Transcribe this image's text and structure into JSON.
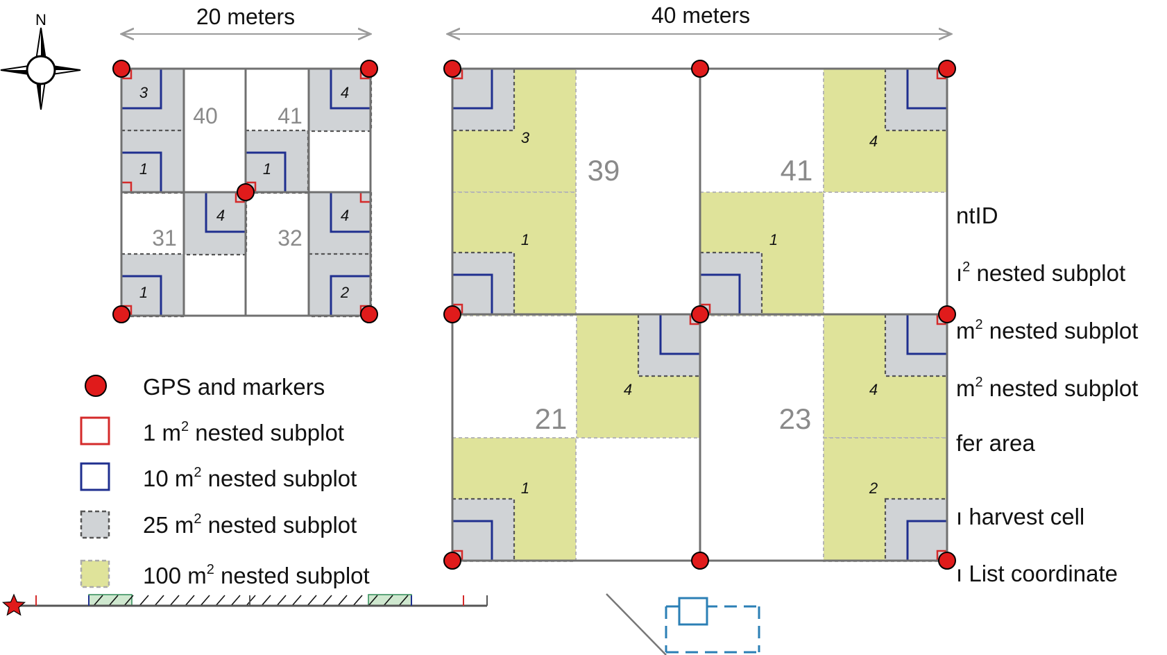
{
  "colors": {
    "gps_marker": "#e01b1b",
    "subplot_1m2": "#d42a2a",
    "subplot_10m2": "#1f2f8f",
    "subplot_25m2": "#d0d3d6",
    "subplot_100m2": "#dfe39a",
    "grid_line": "#707070",
    "cell_number": "#8a8a8a",
    "buffer_hatch": "#cfe8cf",
    "dashed_blue": "#2b7fb5"
  },
  "compass": {
    "north_label": "N"
  },
  "small_plot": {
    "width_label": "20 meters",
    "cells": [
      "40",
      "41",
      "31",
      "32"
    ],
    "subplot_labels": [
      "3",
      "4",
      "1",
      "1",
      "4",
      "4",
      "1",
      "2"
    ]
  },
  "large_plot": {
    "width_label": "40 meters",
    "cells": [
      "39",
      "41",
      "21",
      "23"
    ],
    "subplot_labels": [
      "3",
      "4",
      "1",
      "1",
      "4",
      "4",
      "1",
      "2"
    ]
  },
  "legend": [
    {
      "icon": "gps-marker-icon",
      "label": "GPS and markers",
      "sup": "",
      "label_rest": ""
    },
    {
      "icon": "red-square-icon",
      "label": "1 m",
      "sup": "2",
      "label_rest": " nested subplot"
    },
    {
      "icon": "blue-square-icon",
      "label": "10 m",
      "sup": "2",
      "label_rest": " nested subplot"
    },
    {
      "icon": "gray-dashed-square-icon",
      "label": "25 m",
      "sup": "2",
      "label_rest": " nested subplot"
    },
    {
      "icon": "yellow-dashed-square-icon",
      "label": "100 m",
      "sup": "2",
      "label_rest": " nested subplot"
    }
  ],
  "clipped_legend": [
    {
      "label": "ntID",
      "sup": "",
      "label_rest": ""
    },
    {
      "label": "ı",
      "sup": "2",
      "label_rest": " nested subplot"
    },
    {
      "label": "m",
      "sup": "2",
      "label_rest": " nested subplot"
    },
    {
      "label": "m",
      "sup": "2",
      "label_rest": " nested subplot"
    },
    {
      "label": "fer area",
      "sup": "",
      "label_rest": ""
    },
    {
      "label": "ı harvest cell",
      "sup": "",
      "label_rest": ""
    },
    {
      "label": "ı List coordinate",
      "sup": "",
      "label_rest": ""
    }
  ]
}
